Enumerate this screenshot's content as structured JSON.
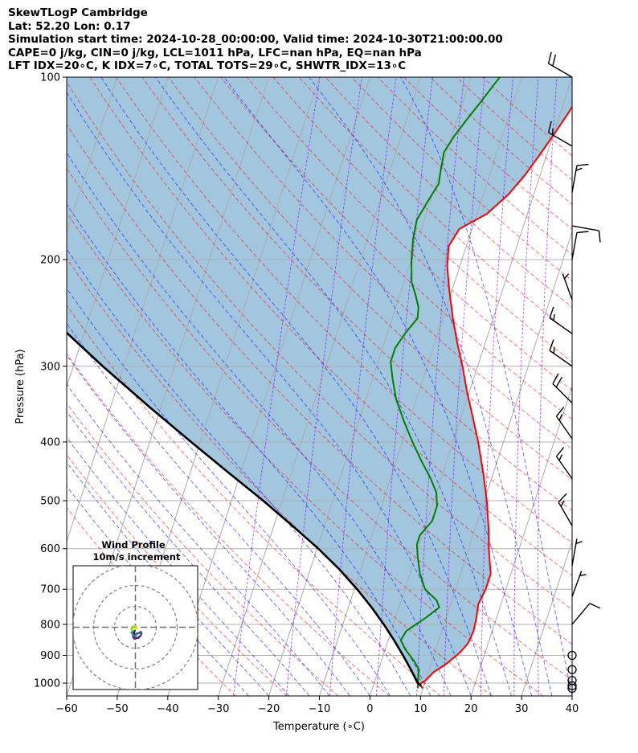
{
  "header": {
    "title": "SkewTLogP Cambridge",
    "location": "Lat: 52.20   Lon: 0.17",
    "times": "Simulation start time: 2024-10-28_00:00:00, Valid time: 2024-10-30T21:00:00.00",
    "indices1": "CAPE=0 j/kg, CIN=0 j/kg, LCL=1011 hPa, LFC=nan hPa, EQ=nan hPa",
    "indices2": "LFT IDX=20∘C, K IDX=7∘C, TOTAL TOTS=29∘C, SHWTR_IDX=13∘C"
  },
  "chart_data": {
    "type": "line",
    "subtype": "skew-t log-p",
    "xlabel": "Temperature (∘C)",
    "ylabel": "Pressure (hPa)",
    "xlim": [
      -60,
      40
    ],
    "ylim": [
      1050,
      100
    ],
    "y_scale": "log",
    "grid": true,
    "x_ticks": [
      -60,
      -50,
      -40,
      -30,
      -20,
      -10,
      0,
      10,
      20,
      30,
      40
    ],
    "y_ticks": [
      100,
      200,
      300,
      400,
      500,
      600,
      700,
      800,
      900,
      1000
    ],
    "series": [
      {
        "name": "",
        "role": "temperature",
        "color": "#ff0000",
        "points": [
          [
            10,
            1020
          ],
          [
            9,
            1005
          ],
          [
            10,
            990
          ],
          [
            11,
            960
          ],
          [
            13,
            930
          ],
          [
            15,
            890
          ],
          [
            16,
            860
          ],
          [
            16.3,
            820
          ],
          [
            16,
            780
          ],
          [
            15.5,
            740
          ],
          [
            16,
            700
          ],
          [
            16,
            660
          ],
          [
            15,
            630
          ],
          [
            14,
            600
          ],
          [
            12.8,
            560
          ],
          [
            10.5,
            500
          ],
          [
            8,
            450
          ],
          [
            5,
            400
          ],
          [
            2,
            360
          ],
          [
            -0.5,
            330
          ],
          [
            -3,
            300
          ],
          [
            -5.5,
            275
          ],
          [
            -8,
            250
          ],
          [
            -10.5,
            225
          ],
          [
            -12.5,
            205
          ],
          [
            -13.5,
            190
          ],
          [
            -12.5,
            178
          ],
          [
            -8,
            168
          ],
          [
            -5,
            156
          ],
          [
            -3,
            145
          ],
          [
            -1.5,
            135
          ],
          [
            0,
            125
          ],
          [
            1.5,
            115
          ],
          [
            2.5,
            108
          ],
          [
            3.5,
            100
          ]
        ]
      },
      {
        "name": "",
        "role": "dewpoint",
        "color": "#008000",
        "points": [
          [
            9,
            1020
          ],
          [
            8.5,
            990
          ],
          [
            8,
            950
          ],
          [
            6.5,
            920
          ],
          [
            4,
            880
          ],
          [
            2.5,
            850
          ],
          [
            3,
            820
          ],
          [
            6,
            780
          ],
          [
            8,
            750
          ],
          [
            7,
            730
          ],
          [
            4,
            700
          ],
          [
            2,
            660
          ],
          [
            0.5,
            620
          ],
          [
            -0.5,
            590
          ],
          [
            -0.5,
            570
          ],
          [
            1,
            540
          ],
          [
            1,
            510
          ],
          [
            0,
            485
          ],
          [
            -2,
            460
          ],
          [
            -5,
            430
          ],
          [
            -8,
            400
          ],
          [
            -11,
            370
          ],
          [
            -14,
            340
          ],
          [
            -16,
            315
          ],
          [
            -17.5,
            295
          ],
          [
            -17.5,
            280
          ],
          [
            -16.5,
            265
          ],
          [
            -15,
            250
          ],
          [
            -15.5,
            240
          ],
          [
            -17,
            228
          ],
          [
            -18.5,
            218
          ],
          [
            -20,
            200
          ],
          [
            -21,
            185
          ],
          [
            -21.5,
            172
          ],
          [
            -20.5,
            160
          ],
          [
            -19.5,
            150
          ],
          [
            -20,
            142
          ],
          [
            -20.5,
            133
          ],
          [
            -19.5,
            125
          ],
          [
            -18,
            117
          ],
          [
            -16.5,
            110
          ],
          [
            -15,
            103
          ],
          [
            -14.3,
            100
          ]
        ]
      },
      {
        "name": "",
        "role": "parcel",
        "color": "#000000",
        "points": [
          [
            9.5,
            1011
          ],
          [
            8.62,
            1000
          ],
          [
            6.4,
            950
          ],
          [
            3.92,
            900
          ],
          [
            1.19,
            850
          ],
          [
            -1.88,
            800
          ],
          [
            -5.39,
            750
          ],
          [
            -9.43,
            700
          ],
          [
            -14.13,
            650
          ],
          [
            -19.72,
            600
          ],
          [
            -26.34,
            550
          ],
          [
            -33.74,
            500
          ],
          [
            -42.33,
            450
          ],
          [
            -51.79,
            400
          ],
          [
            -62.35,
            350
          ],
          [
            -74.17,
            300
          ],
          [
            -87.5,
            250
          ],
          [
            -102.74,
            200
          ],
          [
            -120.73,
            150
          ],
          [
            -142.39,
            100
          ]
        ]
      }
    ],
    "shaded_region": {
      "between": [
        "temperature",
        "parcel"
      ],
      "color": "#a3c6df"
    },
    "isotherms_step": 10,
    "dry_adiabats_theta_c": [
      -30,
      -20,
      -10,
      0,
      10,
      20,
      30,
      40,
      50,
      60,
      70,
      80,
      90,
      100,
      110,
      120,
      130,
      140,
      150,
      160,
      170,
      180,
      190,
      200,
      210,
      220
    ],
    "moist_adiabats_start_c": [
      -24,
      -20,
      -16,
      -12,
      -8,
      -4,
      0,
      4,
      8,
      12,
      16,
      20,
      24,
      28,
      32,
      36,
      40
    ],
    "mixing_ratio_lines": [
      0.4,
      1,
      2,
      4,
      7,
      10,
      16,
      24,
      32
    ],
    "wind_barbs": [
      {
        "p": 100,
        "speed_kt": 20,
        "dir_deg": 300
      },
      {
        "p": 130,
        "speed_kt": 15,
        "dir_deg": 300
      },
      {
        "p": 155,
        "speed_kt": 15,
        "dir_deg": 10
      },
      {
        "p": 176,
        "speed_kt": 10,
        "dir_deg": 100
      },
      {
        "p": 200,
        "speed_kt": 10,
        "dir_deg": 10
      },
      {
        "p": 233,
        "speed_kt": 5,
        "dir_deg": 340
      },
      {
        "p": 265,
        "speed_kt": 15,
        "dir_deg": 305
      },
      {
        "p": 300,
        "speed_kt": 15,
        "dir_deg": 305
      },
      {
        "p": 345,
        "speed_kt": 20,
        "dir_deg": 315
      },
      {
        "p": 395,
        "speed_kt": 15,
        "dir_deg": 325
      },
      {
        "p": 460,
        "speed_kt": 15,
        "dir_deg": 325
      },
      {
        "p": 550,
        "speed_kt": 15,
        "dir_deg": 330
      },
      {
        "p": 640,
        "speed_kt": 5,
        "dir_deg": 10
      },
      {
        "p": 720,
        "speed_kt": 5,
        "dir_deg": 20
      },
      {
        "p": 800,
        "speed_kt": 10,
        "dir_deg": 40
      },
      {
        "p": 900,
        "speed_kt": 0,
        "dir_deg": 0
      },
      {
        "p": 950,
        "speed_kt": 0,
        "dir_deg": 0
      },
      {
        "p": 990,
        "speed_kt": 0,
        "dir_deg": 0
      },
      {
        "p": 1010,
        "speed_kt": 0,
        "dir_deg": 0
      },
      {
        "p": 1020,
        "speed_kt": 0,
        "dir_deg": 0
      }
    ],
    "hodograph": {
      "title": "Wind Profile",
      "subtitle": "10m/s increment",
      "ring_step_ms": 10,
      "ring_count": 3,
      "colormap": "viridis",
      "uv_ms": [
        [
          -0.3,
          -1.2
        ],
        [
          -0.7,
          -3.1
        ],
        [
          -1.1,
          -4.4
        ],
        [
          -0.5,
          -5.4
        ],
        [
          1.5,
          -5.0
        ],
        [
          2.6,
          -3.9
        ],
        [
          2.9,
          -2.9
        ],
        [
          2.6,
          -2.2
        ],
        [
          1.7,
          -2.8
        ],
        [
          0.7,
          -3.0
        ],
        [
          0.2,
          -4.0
        ],
        [
          -0.9,
          -4.2
        ],
        [
          -1.4,
          -3.0
        ],
        [
          -1.9,
          -2.6
        ],
        [
          -1.1,
          -1.6
        ],
        [
          -1.9,
          -0.8
        ],
        [
          -1.4,
          -0.0
        ],
        [
          -0.6,
          0.7
        ],
        [
          0.2,
          0.4
        ],
        [
          0.4,
          -0.4
        ],
        [
          -0.4,
          -0.9
        ],
        [
          -1.2,
          -0.7
        ]
      ]
    }
  }
}
